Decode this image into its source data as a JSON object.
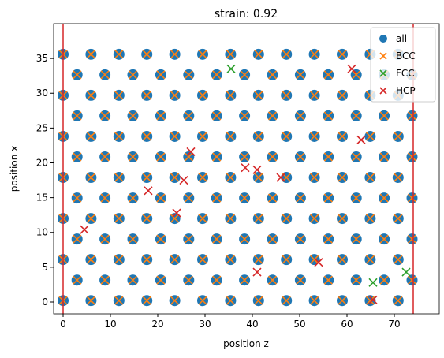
{
  "chart_data": {
    "type": "scatter",
    "title": "strain: 0.92",
    "x_label": "position z",
    "y_label": "position x",
    "xlim": [
      -2,
      79.5
    ],
    "ylim": [
      -1.7,
      40
    ],
    "xticks": [
      0,
      10,
      20,
      30,
      40,
      50,
      60,
      70
    ],
    "yticks": [
      0,
      5,
      10,
      15,
      20,
      25,
      30,
      35
    ],
    "vlines": [
      0,
      74
    ],
    "vline_color": "#d62728",
    "legend": "upper right",
    "series": [
      {
        "name": "all",
        "color": "#1f77b4",
        "marker": "o",
        "x": [
          0,
          5.9,
          11.8,
          17.7,
          23.6,
          29.5,
          35.4,
          41.3,
          47.2,
          53.1,
          59,
          64.9,
          70.8,
          0,
          5.9,
          11.8,
          17.7,
          23.6,
          29.5,
          35.4,
          41.3,
          47.2,
          53.1,
          59,
          64.9,
          70.8,
          0,
          5.9,
          11.8,
          17.7,
          23.6,
          29.5,
          35.4,
          41.3,
          47.2,
          53.1,
          59,
          64.9,
          70.8,
          0,
          5.9,
          11.8,
          17.7,
          23.6,
          29.5,
          35.4,
          41.3,
          47.2,
          53.1,
          59,
          64.9,
          70.8,
          0,
          5.9,
          11.8,
          17.7,
          23.6,
          29.5,
          35.4,
          41.3,
          47.2,
          53.1,
          59,
          64.9,
          70.8,
          0,
          5.9,
          11.8,
          17.7,
          23.6,
          29.5,
          35.4,
          41.3,
          47.2,
          53.1,
          59,
          64.9,
          70.8,
          0,
          5.9,
          11.8,
          17.7,
          23.6,
          29.5,
          35.4,
          41.3,
          47.2,
          53.1,
          59,
          64.9,
          70.8,
          2.95,
          8.85,
          14.75,
          20.65,
          26.55,
          32.45,
          38.35,
          44.25,
          50.15,
          56.05,
          61.95,
          67.85,
          73.75,
          2.95,
          8.85,
          14.75,
          20.65,
          26.55,
          32.45,
          38.35,
          44.25,
          50.15,
          56.05,
          61.95,
          67.85,
          73.75,
          2.95,
          8.85,
          14.75,
          20.65,
          26.55,
          32.45,
          38.35,
          44.25,
          50.15,
          56.05,
          61.95,
          67.85,
          73.75,
          2.95,
          8.85,
          14.75,
          20.65,
          26.55,
          32.45,
          38.35,
          44.25,
          50.15,
          56.05,
          61.95,
          67.85,
          73.75,
          2.95,
          8.85,
          14.75,
          20.65,
          26.55,
          32.45,
          38.35,
          44.25,
          50.15,
          56.05,
          61.95,
          67.85,
          73.75,
          2.95,
          8.85,
          14.75,
          20.65,
          26.55,
          32.45,
          38.35,
          44.25,
          50.15,
          56.05,
          61.95,
          67.85,
          73.75
        ],
        "y": [
          0.2,
          0.2,
          0.2,
          0.2,
          0.2,
          0.2,
          0.2,
          0.2,
          0.2,
          0.2,
          0.2,
          0.2,
          0.2,
          6.1,
          6.1,
          6.1,
          6.1,
          6.1,
          6.1,
          6.1,
          6.1,
          6.1,
          6.1,
          6.1,
          6.1,
          6.1,
          12,
          12,
          12,
          12,
          12,
          12,
          12,
          12,
          12,
          12,
          12,
          12,
          12,
          17.9,
          17.9,
          17.9,
          17.9,
          17.9,
          17.9,
          17.9,
          17.9,
          17.9,
          17.9,
          17.9,
          17.9,
          17.9,
          23.8,
          23.8,
          23.8,
          23.8,
          23.8,
          23.8,
          23.8,
          23.8,
          23.8,
          23.8,
          23.8,
          23.8,
          23.8,
          29.7,
          29.7,
          29.7,
          29.7,
          29.7,
          29.7,
          29.7,
          29.7,
          29.7,
          29.7,
          29.7,
          29.7,
          29.7,
          35.6,
          35.6,
          35.6,
          35.6,
          35.6,
          35.6,
          35.6,
          35.6,
          35.6,
          35.6,
          35.6,
          35.6,
          35.6,
          3.15,
          3.15,
          3.15,
          3.15,
          3.15,
          3.15,
          3.15,
          3.15,
          3.15,
          3.15,
          3.15,
          3.15,
          3.15,
          9.05,
          9.05,
          9.05,
          9.05,
          9.05,
          9.05,
          9.05,
          9.05,
          9.05,
          9.05,
          9.05,
          9.05,
          9.05,
          14.95,
          14.95,
          14.95,
          14.95,
          14.95,
          14.95,
          14.95,
          14.95,
          14.95,
          14.95,
          14.95,
          14.95,
          14.95,
          20.85,
          20.85,
          20.85,
          20.85,
          20.85,
          20.85,
          20.85,
          20.85,
          20.85,
          20.85,
          20.85,
          20.85,
          20.85,
          26.75,
          26.75,
          26.75,
          26.75,
          26.75,
          26.75,
          26.75,
          26.75,
          26.75,
          26.75,
          26.75,
          26.75,
          26.75,
          32.65,
          32.65,
          32.65,
          32.65,
          32.65,
          32.65,
          32.65,
          32.65,
          32.65,
          32.65,
          32.65,
          32.65,
          32.65
        ]
      },
      {
        "name": "BCC",
        "color": "#ff7f0e",
        "marker": "x",
        "x": [
          0,
          5.9,
          11.8,
          17.7,
          23.6,
          29.5,
          35.4,
          41.3,
          47.2,
          53.1,
          59,
          64.9,
          70.8,
          0,
          5.9,
          11.8,
          17.7,
          23.6,
          29.5,
          35.4,
          41.3,
          47.2,
          53.1,
          59,
          64.9,
          70.8,
          0,
          5.9,
          11.8,
          17.7,
          23.6,
          29.5,
          35.4,
          41.3,
          47.2,
          53.1,
          59,
          64.9,
          70.8,
          0,
          5.9,
          11.8,
          17.7,
          23.6,
          29.5,
          35.4,
          41.3,
          47.2,
          53.1,
          59,
          64.9,
          70.8,
          0,
          5.9,
          11.8,
          17.7,
          23.6,
          29.5,
          35.4,
          41.3,
          47.2,
          53.1,
          59,
          64.9,
          70.8,
          0,
          5.9,
          11.8,
          17.7,
          23.6,
          29.5,
          35.4,
          41.3,
          47.2,
          53.1,
          59,
          64.9,
          70.8,
          0,
          5.9,
          11.8,
          17.7,
          23.6,
          29.5,
          35.4,
          41.3,
          47.2,
          53.1,
          59,
          64.9,
          70.8,
          2.95,
          8.85,
          14.75,
          20.65,
          26.55,
          32.45,
          38.35,
          44.25,
          50.15,
          56.05,
          61.95,
          67.85,
          73.75,
          2.95,
          8.85,
          14.75,
          20.65,
          26.55,
          32.45,
          38.35,
          44.25,
          50.15,
          56.05,
          61.95,
          67.85,
          73.75,
          2.95,
          8.85,
          14.75,
          20.65,
          26.55,
          32.45,
          38.35,
          44.25,
          50.15,
          56.05,
          61.95,
          67.85,
          73.75,
          2.95,
          8.85,
          14.75,
          20.65,
          26.55,
          32.45,
          38.35,
          44.25,
          50.15,
          56.05,
          61.95,
          67.85,
          73.75,
          2.95,
          8.85,
          14.75,
          20.65,
          26.55,
          32.45,
          38.35,
          44.25,
          50.15,
          56.05,
          61.95,
          67.85,
          73.75,
          2.95,
          8.85,
          14.75,
          20.65,
          26.55,
          32.45,
          38.35,
          44.25,
          50.15,
          56.05,
          61.95,
          67.85,
          73.75
        ],
        "y": [
          0.2,
          0.2,
          0.2,
          0.2,
          0.2,
          0.2,
          0.2,
          0.2,
          0.2,
          0.2,
          0.2,
          0.2,
          0.2,
          6.1,
          6.1,
          6.1,
          6.1,
          6.1,
          6.1,
          6.1,
          6.1,
          6.1,
          6.1,
          6.1,
          6.1,
          6.1,
          12,
          12,
          12,
          12,
          12,
          12,
          12,
          12,
          12,
          12,
          12,
          12,
          12,
          17.9,
          17.9,
          17.9,
          17.9,
          17.9,
          17.9,
          17.9,
          17.9,
          17.9,
          17.9,
          17.9,
          17.9,
          17.9,
          23.8,
          23.8,
          23.8,
          23.8,
          23.8,
          23.8,
          23.8,
          23.8,
          23.8,
          23.8,
          23.8,
          23.8,
          23.8,
          29.7,
          29.7,
          29.7,
          29.7,
          29.7,
          29.7,
          29.7,
          29.7,
          29.7,
          29.7,
          29.7,
          29.7,
          29.7,
          35.6,
          35.6,
          35.6,
          35.6,
          35.6,
          35.6,
          35.6,
          35.6,
          35.6,
          35.6,
          35.6,
          35.6,
          35.6,
          3.15,
          3.15,
          3.15,
          3.15,
          3.15,
          3.15,
          3.15,
          3.15,
          3.15,
          3.15,
          3.15,
          3.15,
          3.15,
          9.05,
          9.05,
          9.05,
          9.05,
          9.05,
          9.05,
          9.05,
          9.05,
          9.05,
          9.05,
          9.05,
          9.05,
          9.05,
          14.95,
          14.95,
          14.95,
          14.95,
          14.95,
          14.95,
          14.95,
          14.95,
          14.95,
          14.95,
          14.95,
          14.95,
          14.95,
          20.85,
          20.85,
          20.85,
          20.85,
          20.85,
          20.85,
          20.85,
          20.85,
          20.85,
          20.85,
          20.85,
          20.85,
          20.85,
          26.75,
          26.75,
          26.75,
          26.75,
          26.75,
          26.75,
          26.75,
          26.75,
          26.75,
          26.75,
          26.75,
          26.75,
          26.75,
          32.65,
          32.65,
          32.65,
          32.65,
          32.65,
          32.65,
          32.65,
          32.65,
          32.65,
          32.65,
          32.65,
          32.65,
          32.65
        ]
      },
      {
        "name": "FCC",
        "color": "#2ca02c",
        "marker": "x",
        "x": [
          35.5,
          65.5,
          72.5
        ],
        "y": [
          33.5,
          2.8,
          4.3
        ]
      },
      {
        "name": "HCP",
        "color": "#d62728",
        "marker": "x",
        "x": [
          61,
          63,
          27,
          38.5,
          41,
          46,
          18,
          25.5,
          24,
          4.5,
          41,
          54,
          65.5
        ],
        "y": [
          33.5,
          23.3,
          21.6,
          19.3,
          19,
          17.9,
          16,
          17.5,
          12.8,
          10.4,
          4.3,
          5.7,
          0.3
        ]
      }
    ]
  }
}
